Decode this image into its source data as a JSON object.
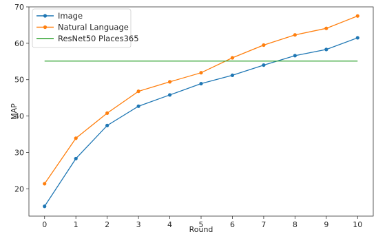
{
  "chart_data": {
    "type": "line",
    "title": "",
    "xlabel": "Round",
    "ylabel": "MAP",
    "x": [
      0,
      1,
      2,
      3,
      4,
      5,
      6,
      7,
      8,
      9,
      10
    ],
    "xlim": [
      -0.5,
      10.5
    ],
    "ylim": [
      12.5,
      70
    ],
    "xticks": [
      0,
      1,
      2,
      3,
      4,
      5,
      6,
      7,
      8,
      9,
      10
    ],
    "yticks": [
      20,
      30,
      40,
      50,
      60,
      70
    ],
    "grid": false,
    "legend_position": "top-left",
    "series": [
      {
        "name": "Image",
        "color": "#1f77b4",
        "marker": "circle",
        "values": [
          15.2,
          28.3,
          37.4,
          42.7,
          45.8,
          48.9,
          51.2,
          54.0,
          56.6,
          58.3,
          61.5
        ]
      },
      {
        "name": "Natural Language",
        "color": "#ff7f0e",
        "marker": "circle",
        "values": [
          21.4,
          33.9,
          40.8,
          46.8,
          49.4,
          51.9,
          56.0,
          59.5,
          62.3,
          64.1,
          67.5
        ]
      },
      {
        "name": "ResNet50 Places365",
        "color": "#2ca02c",
        "marker": "none",
        "values": [
          55.1,
          55.1,
          55.1,
          55.1,
          55.1,
          55.1,
          55.1,
          55.1,
          55.1,
          55.1,
          55.1
        ]
      }
    ]
  }
}
